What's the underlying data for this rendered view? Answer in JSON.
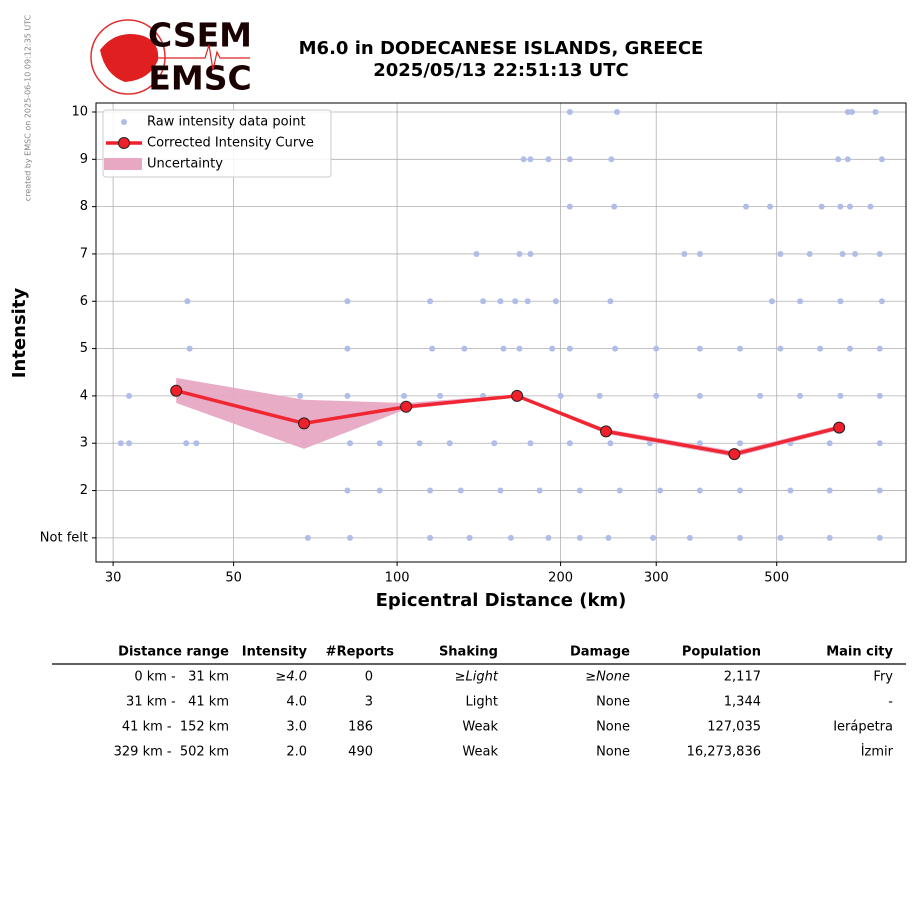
{
  "credit": "created by EMSC on 2025-06-10 09:12:35 UTC",
  "logo": [
    "CSEM",
    "EMSC"
  ],
  "chart_data": {
    "type": "scatter",
    "title": "M6.0 in DODECANESE ISLANDS, GREECE",
    "subtitle": "2025/05/13 22:51:13 UTC",
    "xlabel": "Epicentral Distance (km)",
    "ylabel": "Intensity",
    "log_x": true,
    "grid": true,
    "legend": "upper left",
    "xlim": [
      27.9,
      865
    ],
    "xticks": [
      30,
      50,
      100,
      200,
      300,
      500
    ],
    "ylim": [
      0.49,
      10.19
    ],
    "yticks": [
      {
        "value": 1,
        "label": "Not felt"
      },
      2,
      3,
      4,
      5,
      6,
      7,
      8,
      9,
      10
    ],
    "series": [
      {
        "name": "Raw intensity data point",
        "color": "#b0bde9",
        "style": "points",
        "x": [
          208,
          254,
          676,
          688,
          760,
          171,
          176,
          190,
          208,
          248,
          649,
          676,
          781,
          208,
          251,
          439,
          486,
          605,
          655,
          682,
          744,
          140,
          168,
          176,
          338,
          361,
          508,
          575,
          661,
          697,
          774,
          41.1,
          81,
          115,
          144,
          155,
          165,
          174,
          196,
          247,
          490,
          552,
          655,
          781,
          41.5,
          81,
          116,
          133,
          157,
          168,
          193,
          208,
          252,
          300,
          361,
          428,
          508,
          601,
          682,
          774,
          32.1,
          66.3,
          81,
          103,
          120,
          144,
          168,
          200,
          236,
          300,
          361,
          466,
          552,
          655,
          774,
          31,
          32.1,
          40.9,
          42.7,
          67.4,
          81.9,
          92.9,
          110,
          125,
          151,
          176,
          208,
          247,
          292,
          361,
          428,
          530,
          626,
          774,
          81,
          92.9,
          115,
          131,
          155,
          183,
          217,
          257,
          305,
          361,
          428,
          530,
          626,
          774,
          68.5,
          81.9,
          115,
          136,
          162,
          190,
          217,
          245,
          296,
          346,
          428,
          508,
          626,
          774
        ],
        "values": [
          10,
          10,
          10,
          10,
          10,
          9,
          9,
          9,
          9,
          9,
          9,
          9,
          9,
          8,
          8,
          8,
          8,
          8,
          8,
          8,
          8,
          7,
          7,
          7,
          7,
          7,
          7,
          7,
          7,
          7,
          7,
          6,
          6,
          6,
          6,
          6,
          6,
          6,
          6,
          6,
          6,
          6,
          6,
          6,
          5,
          5,
          5,
          5,
          5,
          5,
          5,
          5,
          5,
          5,
          5,
          5,
          5,
          5,
          5,
          5,
          4,
          4,
          4,
          4,
          4,
          4,
          4,
          4,
          4,
          4,
          4,
          4,
          4,
          4,
          4,
          3,
          3,
          3,
          3,
          3,
          3,
          3,
          3,
          3,
          3,
          3,
          3,
          3,
          3,
          3,
          3,
          3,
          3,
          3,
          2,
          2,
          2,
          2,
          2,
          2,
          2,
          2,
          2,
          2,
          2,
          2,
          2,
          2,
          1,
          1,
          1,
          1,
          1,
          1,
          1,
          1,
          1,
          1,
          1,
          1,
          1,
          1
        ]
      },
      {
        "name": "Corrected Intensity Curve",
        "color": "#f0202a",
        "style": "line",
        "x": [
          39.2,
          67.4,
          103.9,
          166.3,
          242.5,
          417.8,
          651.6
        ],
        "values": [
          4.11,
          3.42,
          3.77,
          4.0,
          3.25,
          2.77,
          3.33
        ]
      },
      {
        "name": "Uncertainty",
        "color": "#e8a8c4",
        "style": "band",
        "x": [
          39.2,
          67.4,
          103.9,
          166.3,
          242.5,
          417.8,
          651.6
        ],
        "lower": [
          3.85,
          2.88,
          3.72,
          3.97,
          3.2,
          2.71,
          3.28
        ],
        "upper": [
          4.38,
          3.92,
          3.85,
          4.03,
          3.3,
          2.83,
          3.38
        ]
      }
    ]
  },
  "table": {
    "columns": [
      "Distance range",
      "Intensity",
      "#Reports",
      "Shaking",
      "Damage",
      "Population",
      "Main city"
    ],
    "rows": [
      [
        "0 km -   31 km",
        "≥4.0",
        "0",
        "≥Light",
        "≥None",
        "2,117",
        "Fry"
      ],
      [
        "31 km -   41 km",
        "4.0",
        "3",
        "Light",
        "None",
        "1,344",
        "-"
      ],
      [
        "41 km -  152 km",
        "3.0",
        "186",
        "Weak",
        "None",
        "127,035",
        "Ierápetra"
      ],
      [
        "329 km -  502 km",
        "2.0",
        "490",
        "Weak",
        "None",
        "16,273,836",
        "İzmir"
      ]
    ]
  }
}
